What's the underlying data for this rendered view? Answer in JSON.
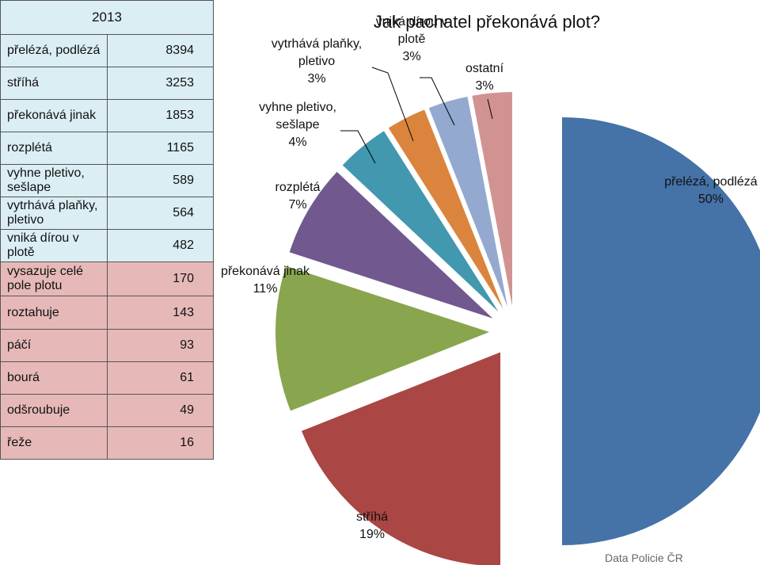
{
  "table": {
    "year": "2013",
    "colors": {
      "blue": "#dbeef4",
      "pink": "#e6b9b8",
      "header": "#dbeef4"
    },
    "rows": [
      {
        "label": "přelézá, podlézá",
        "value": "8394",
        "group": "blue"
      },
      {
        "label": "stříhá",
        "value": "3253",
        "group": "blue"
      },
      {
        "label": "překonává jinak",
        "value": "1853",
        "group": "blue"
      },
      {
        "label": "rozplétá",
        "value": "1165",
        "group": "blue"
      },
      {
        "label": "vyhne pletivo, sešlape",
        "value": "589",
        "group": "blue"
      },
      {
        "label": "vytrhává plaňky, pletivo",
        "value": "564",
        "group": "blue"
      },
      {
        "label": "vniká dírou v plotě",
        "value": "482",
        "group": "blue"
      },
      {
        "label": "vysazuje celé pole plotu",
        "value": "170",
        "group": "pink"
      },
      {
        "label": "roztahuje",
        "value": "143",
        "group": "pink"
      },
      {
        "label": "páčí",
        "value": "93",
        "group": "pink"
      },
      {
        "label": "bourá",
        "value": "61",
        "group": "pink"
      },
      {
        "label": "odšroubuje",
        "value": "49",
        "group": "pink"
      },
      {
        "label": "řeže",
        "value": "16",
        "group": "pink"
      }
    ]
  },
  "chart_data": {
    "type": "pie",
    "title": "Jak pachatel překonává plot?",
    "slices": [
      {
        "label": "přelézá, podlézá",
        "percent": 50,
        "display": "50%",
        "color": "#4572a7"
      },
      {
        "label": "stříhá",
        "percent": 19,
        "display": "19%",
        "color": "#aa4643"
      },
      {
        "label": "překonává jinak",
        "percent": 11,
        "display": "11%",
        "color": "#89a54e"
      },
      {
        "label": "rozplétá",
        "percent": 7,
        "display": "7%",
        "color": "#71588f"
      },
      {
        "label": "vyhne pletivo, sešlape",
        "percent": 4,
        "display": "4%",
        "color": "#4198af"
      },
      {
        "label": "vytrhává plaňky, pletivo",
        "percent": 3,
        "display": "3%",
        "color": "#db843d"
      },
      {
        "label": "vniká dírou v plotě",
        "percent": 3,
        "display": "3%",
        "color": "#93a9cf"
      },
      {
        "label": "ostatní",
        "percent": 3,
        "display": "3%",
        "color": "#d19392"
      }
    ]
  },
  "credit": "Data Policie ČR"
}
